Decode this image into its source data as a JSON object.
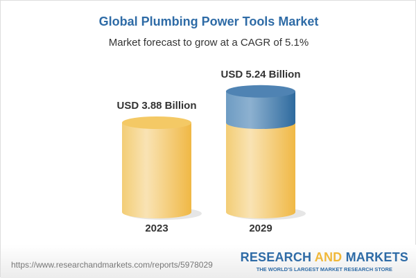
{
  "title": "Global Plumbing Power Tools Market",
  "subtitle": "Market forecast to grow at a CAGR of 5.1%",
  "chart_data": {
    "type": "bar",
    "style": "3d-cylinder",
    "categories": [
      "2023",
      "2029"
    ],
    "values": [
      3.88,
      5.24
    ],
    "data_labels": [
      "USD 3.88 Billion",
      "USD 5.24 Billion"
    ],
    "unit": "USD Billion",
    "colors": {
      "base": "#f2c35a",
      "growth": "#4a7fb0"
    }
  },
  "footer": {
    "url": "https://www.researchandmarkets.com/reports/5978029",
    "logo": {
      "part1": "RESEARCH ",
      "part2": "AND",
      "part3": " MARKETS",
      "tagline": "THE WORLD'S LARGEST MARKET RESEARCH STORE"
    }
  }
}
